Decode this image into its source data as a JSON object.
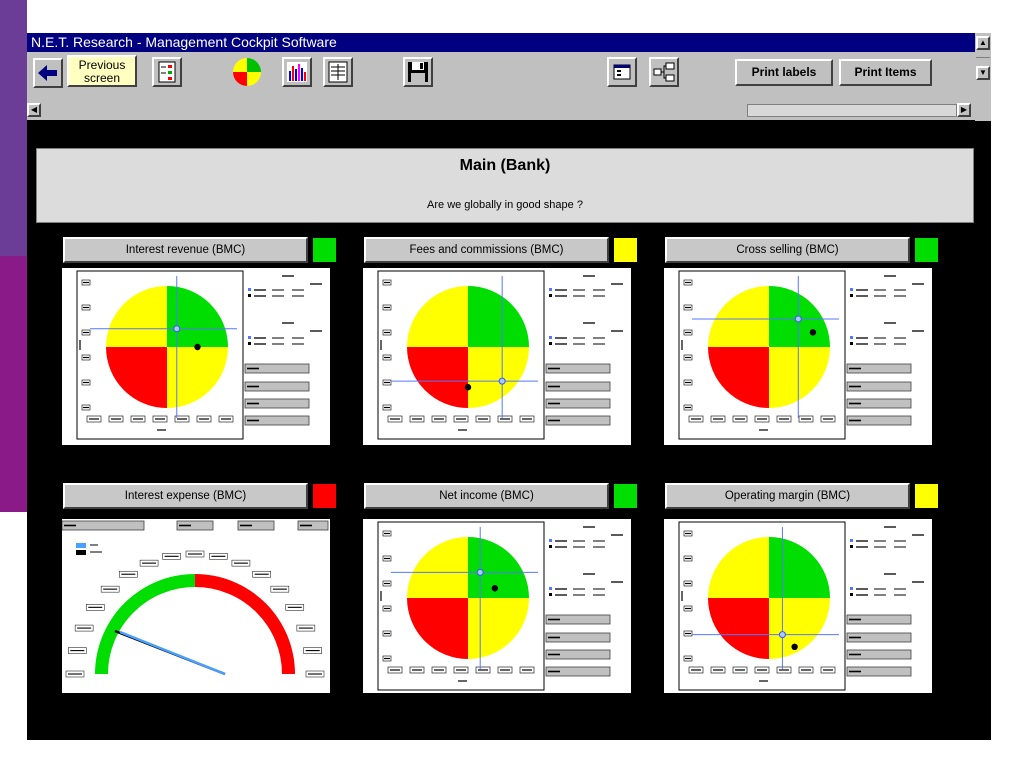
{
  "window": {
    "title": "N.E.T. Research - Management Cockpit Software"
  },
  "toolbar": {
    "previous_label_line1": "Previous",
    "previous_label_line2": "screen",
    "print_labels": "Print labels",
    "print_items": "Print Items"
  },
  "header": {
    "title": "Main (Bank)",
    "subtitle": "Are we globally in good shape ?"
  },
  "colors": {
    "green": "#00dd00",
    "yellow": "#ffff00",
    "red": "#ff0000",
    "navy": "#000080"
  },
  "panels": [
    {
      "title": "Interest revenue (BMC)",
      "status": "green",
      "cross": [
        0.58,
        0.35
      ],
      "dot": [
        0.75,
        0.5
      ]
    },
    {
      "title": "Fees and  commissions (BMC)",
      "status": "yellow",
      "cross": [
        0.78,
        0.78
      ],
      "dot": [
        0.5,
        0.83
      ]
    },
    {
      "title": "Cross selling (BMC)",
      "status": "green",
      "cross": [
        0.74,
        0.27
      ],
      "dot": [
        0.86,
        0.38
      ]
    },
    {
      "title": "Interest expense (BMC)",
      "status": "red",
      "gauge": true
    },
    {
      "title": "Net income (BMC)",
      "status": "green",
      "cross": [
        0.6,
        0.29
      ],
      "dot": [
        0.72,
        0.42
      ]
    },
    {
      "title": "Operating margin (BMC)",
      "status": "yellow",
      "cross": [
        0.61,
        0.8
      ],
      "dot": [
        0.71,
        0.9
      ]
    }
  ]
}
